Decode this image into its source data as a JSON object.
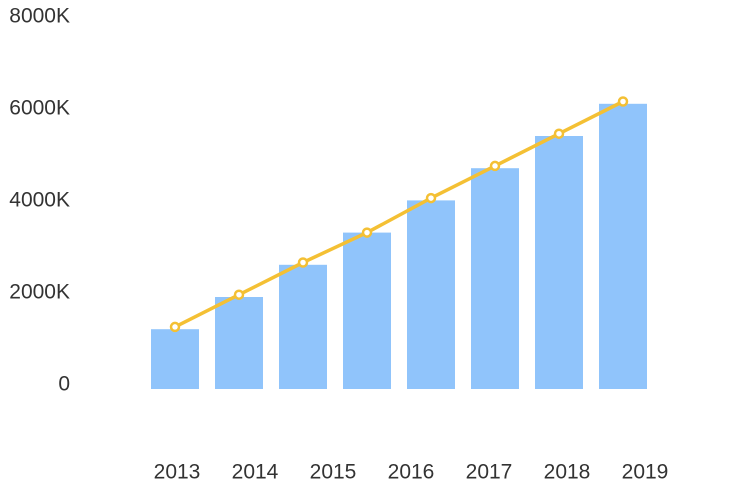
{
  "chart_data": {
    "type": "bar-line",
    "categories": [
      "2013",
      "2014",
      "2015",
      "2016",
      "2017",
      "2018",
      "2019",
      null
    ],
    "series": [
      {
        "type": "bar",
        "color": "#90c4fb",
        "values": [
          1300000,
          2000000,
          2700000,
          3400000,
          4100000,
          4800000,
          5500000,
          6200000
        ]
      },
      {
        "type": "line",
        "color": "#f4c034",
        "values": [
          1350000,
          2050000,
          2750000,
          3400000,
          4150000,
          4850000,
          5550000,
          6250000
        ]
      }
    ],
    "ylim": [
      0,
      8000000
    ],
    "yticks": [
      0,
      {
        "value": 2000000,
        "label": "2000K"
      },
      {
        "value": 4000000,
        "label": "4000K"
      },
      {
        "value": 6000000,
        "label": "6000K"
      },
      {
        "value": 8000000,
        "label": "8000K"
      }
    ],
    "grid": false
  }
}
